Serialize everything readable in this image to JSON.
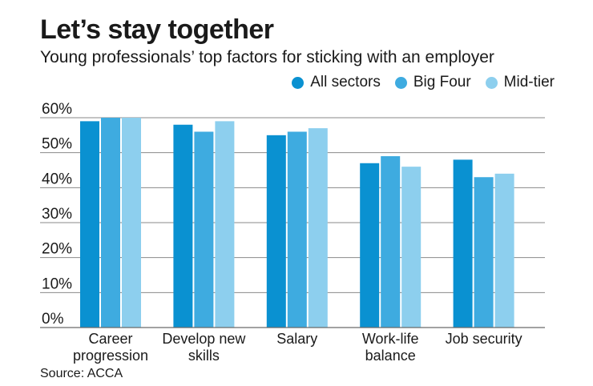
{
  "title": "Let’s stay together",
  "subtitle": "Young professionals’ top factors for sticking with an employer",
  "source": "Source: ACCA",
  "colors": {
    "All sectors": "#0a91d1",
    "Big Four": "#3eabe0",
    "Mid-tier": "#8dcfee",
    "grid": "#8a8a8a"
  },
  "chart_data": {
    "type": "bar",
    "categories": [
      [
        "Career",
        "progression"
      ],
      [
        "Develop new",
        "skills"
      ],
      [
        "Salary"
      ],
      [
        "Work-life",
        "balance"
      ],
      [
        "Job security"
      ]
    ],
    "series": [
      {
        "name": "All sectors",
        "values": [
          59,
          58,
          55,
          47,
          48
        ]
      },
      {
        "name": "Big Four",
        "values": [
          60,
          56,
          56,
          49,
          43
        ]
      },
      {
        "name": "Mid-tier",
        "values": [
          60,
          59,
          57,
          46,
          44
        ]
      }
    ],
    "yticks": [
      "0%",
      "10%",
      "20%",
      "30%",
      "40%",
      "50%",
      "60%"
    ],
    "ylim": [
      0,
      60
    ],
    "legend": "top-right",
    "grid": true
  }
}
